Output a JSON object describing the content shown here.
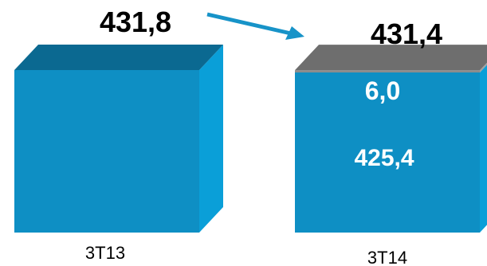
{
  "chart_data": {
    "type": "bar",
    "stacked": true,
    "categories": [
      "3T13",
      "3T14"
    ],
    "series": [
      {
        "name": "",
        "values": [
          431.8,
          425.4
        ],
        "color": "#0e8fc4"
      },
      {
        "name": "",
        "values": [
          0,
          6.0
        ],
        "color": "#8c8c8c"
      }
    ],
    "totals": [
      431.8,
      431.4
    ],
    "total_labels": [
      "431,8",
      "431,4"
    ],
    "segment_labels": [
      [],
      [
        "425,4",
        "6,0"
      ]
    ],
    "annotations": [
      {
        "type": "arrow",
        "from": "3T13",
        "to": "3T14",
        "color": "#1793c8"
      }
    ],
    "colors": {
      "front": "#0e8fc4",
      "side": "#0a9fd8",
      "top": "#0b6991",
      "grey_front": "#8c8c8c",
      "grey_side": "#a0a0a0",
      "grey_top": "#6e6e6e",
      "arrow": "#1793c8"
    },
    "title": "",
    "xlabel": "",
    "ylabel": "",
    "grid": false,
    "legend": "none"
  }
}
